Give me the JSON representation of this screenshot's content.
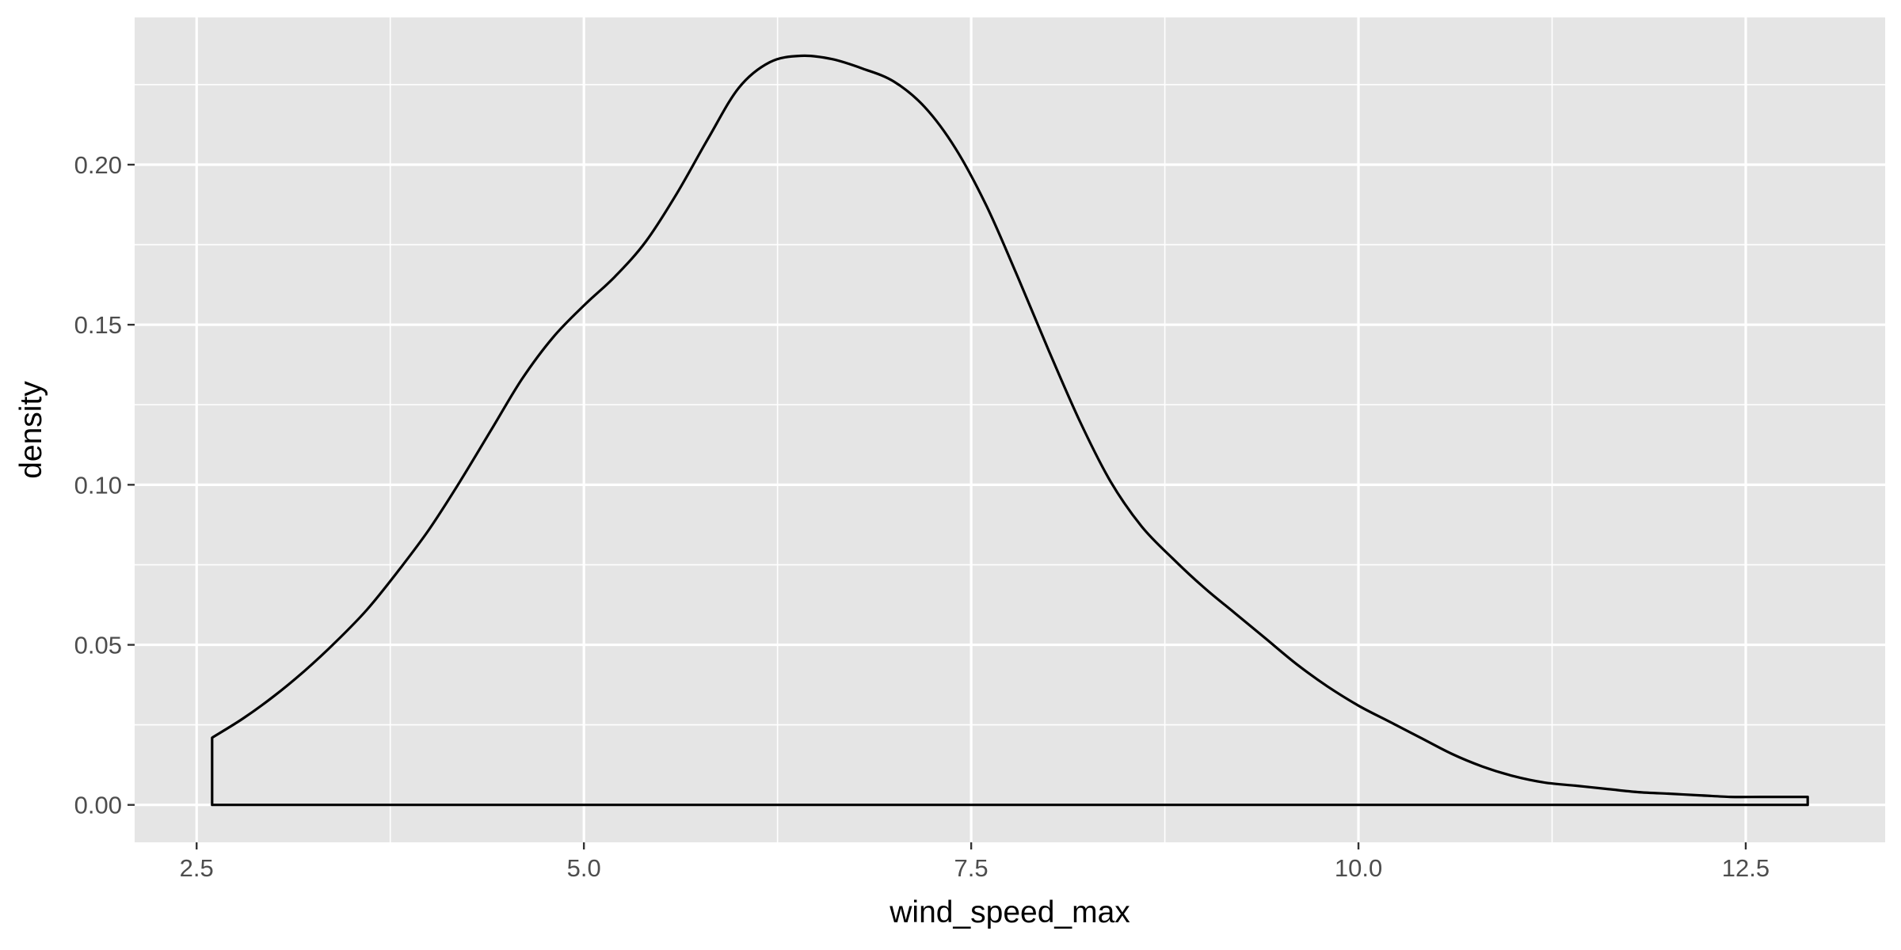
{
  "chart_data": {
    "type": "area",
    "xlabel": "wind_speed_max",
    "ylabel": "density",
    "xlim": [
      2.1,
      13.4
    ],
    "ylim": [
      -0.0117,
      0.246
    ],
    "x_ticks": [
      2.5,
      5.0,
      7.5,
      10.0,
      12.5
    ],
    "x_tick_labels": [
      "2.5",
      "5.0",
      "7.5",
      "10.0",
      "12.5"
    ],
    "y_ticks": [
      0.0,
      0.05,
      0.1,
      0.15,
      0.2
    ],
    "y_tick_labels": [
      "0.00",
      "0.05",
      "0.10",
      "0.15",
      "0.20"
    ],
    "grid": true,
    "colors": {
      "panel": "#e5e5e5",
      "grid": "#ffffff",
      "line": "#000000",
      "tick": "#333333",
      "tick_text": "#4d4d4d"
    },
    "series": [
      {
        "x": [
          2.6,
          2.8,
          3.0,
          3.2,
          3.4,
          3.6,
          3.8,
          4.0,
          4.2,
          4.4,
          4.6,
          4.8,
          5.0,
          5.2,
          5.4,
          5.6,
          5.8,
          6.0,
          6.2,
          6.4,
          6.6,
          6.8,
          7.0,
          7.2,
          7.4,
          7.6,
          7.8,
          8.0,
          8.2,
          8.4,
          8.6,
          8.8,
          9.0,
          9.2,
          9.4,
          9.6,
          9.8,
          10.0,
          10.2,
          10.4,
          10.6,
          10.8,
          11.0,
          11.2,
          11.4,
          11.6,
          11.8,
          12.0,
          12.2,
          12.4,
          12.6,
          12.8,
          12.9
        ],
        "y": [
          0.021,
          0.027,
          0.034,
          0.042,
          0.051,
          0.061,
          0.073,
          0.086,
          0.101,
          0.117,
          0.133,
          0.146,
          0.156,
          0.165,
          0.176,
          0.191,
          0.208,
          0.224,
          0.232,
          0.234,
          0.233,
          0.23,
          0.226,
          0.218,
          0.205,
          0.187,
          0.165,
          0.142,
          0.12,
          0.101,
          0.087,
          0.077,
          0.068,
          0.06,
          0.052,
          0.044,
          0.037,
          0.031,
          0.026,
          0.021,
          0.016,
          0.012,
          0.009,
          0.007,
          0.006,
          0.005,
          0.004,
          0.0035,
          0.003,
          0.0025,
          0.0025,
          0.0025,
          0.0025
        ]
      }
    ]
  }
}
